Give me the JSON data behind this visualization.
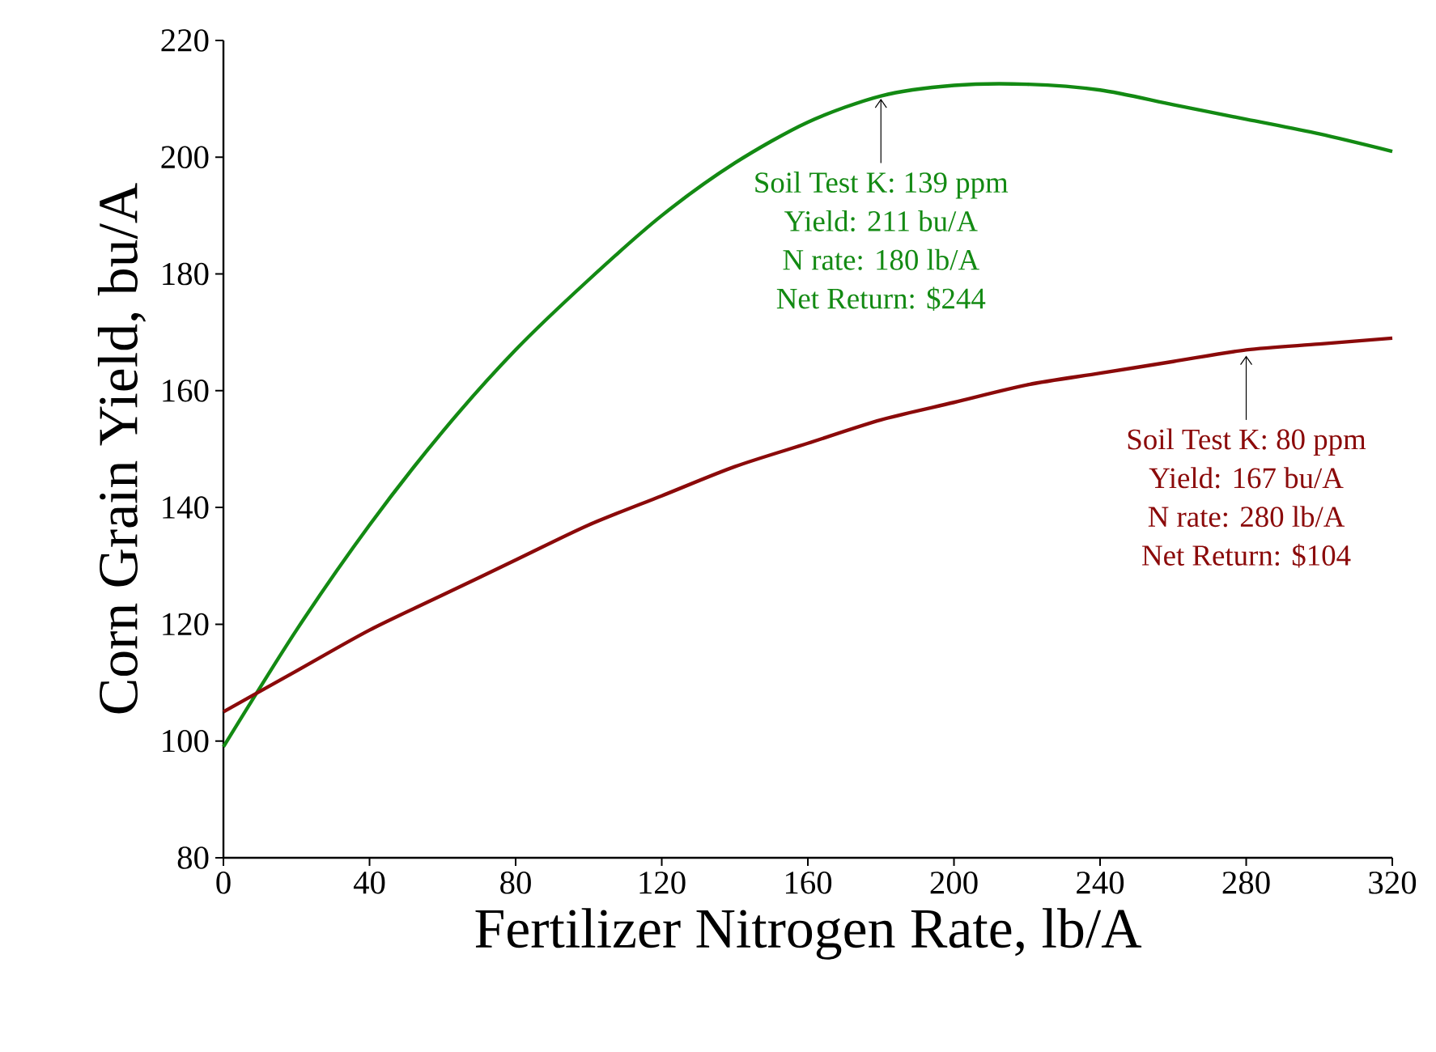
{
  "chart_data": {
    "type": "line",
    "xlabel": "Fertilizer Nitrogen Rate, lb/A",
    "ylabel": "Corn Grain Yield, bu/A",
    "xlim": [
      0,
      320
    ],
    "ylim": [
      80,
      220
    ],
    "xticks": [
      0,
      40,
      80,
      120,
      160,
      200,
      240,
      280,
      320
    ],
    "yticks": [
      80,
      100,
      120,
      140,
      160,
      180,
      200,
      220
    ],
    "grid": false,
    "marker": "none",
    "line_style": "solid",
    "series": [
      {
        "color": "#138a13",
        "x": [
          0,
          20,
          40,
          60,
          80,
          100,
          120,
          140,
          160,
          180,
          200,
          220,
          240,
          260,
          280,
          300,
          320
        ],
        "values": [
          99,
          119,
          137,
          153,
          167,
          179,
          190,
          199,
          206,
          210.5,
          212.3,
          212.5,
          211.5,
          209,
          206.5,
          204,
          201
        ]
      },
      {
        "color": "#8b0a0a",
        "x": [
          0,
          20,
          40,
          60,
          80,
          100,
          120,
          140,
          160,
          180,
          200,
          220,
          240,
          260,
          280,
          300,
          320
        ],
        "values": [
          105,
          112,
          119,
          125,
          131,
          137,
          142,
          147,
          151,
          155,
          158,
          161,
          163,
          165,
          167,
          168,
          169
        ]
      }
    ],
    "annotations": [
      {
        "text": "Soil Test K: 139 ppm",
        "x": 180,
        "y": 211
      },
      "Yield: 211 bu/A",
      "N rate: 180 lb/A",
      "Net Return: $244",
      {
        "text": "Soil Test K: 80 ppm",
        "x": 280,
        "y": 167
      },
      "Yield: 167 bu/A",
      "N rate: 280 lb/A",
      "Net Return: $104"
    ]
  }
}
